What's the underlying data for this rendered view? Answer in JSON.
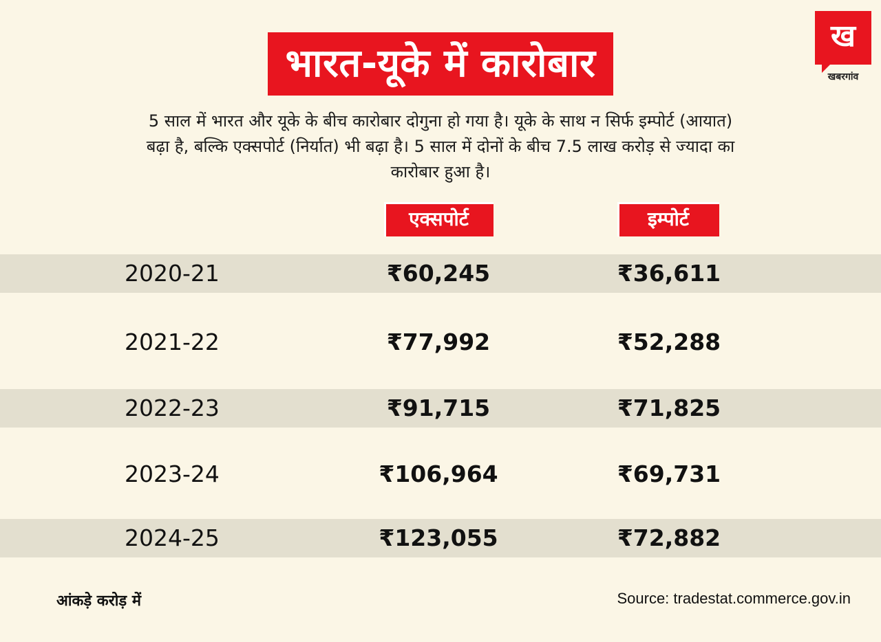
{
  "title": "भारत-यूके में कारोबार",
  "logo": {
    "mark": "ख",
    "text": "खबरगांव"
  },
  "intro": "5 साल में भारत और यूके के बीच कारोबार दोगुना हो गया है। यूके के साथ न सिर्फ इम्पोर्ट (आयात) बढ़ा है, बल्कि एक्सपोर्ट (निर्यात) भी बढ़ा है। 5 साल में दोनों के बीच 7.5 लाख करोड़ से ज्यादा का कारोबार हुआ है।",
  "colors": {
    "accent": "#e8151f",
    "background": "#fbf6e6",
    "stripe": "#e3dfcf"
  },
  "chart_data": {
    "type": "table",
    "columns": [
      "एक्सपोर्ट",
      "इम्पोर्ट"
    ],
    "rows": [
      {
        "year": "2020-21",
        "export": "₹60,245",
        "import": "₹36,611"
      },
      {
        "year": "2021-22",
        "export": "₹77,992",
        "import": "₹52,288"
      },
      {
        "year": "2022-23",
        "export": "₹91,715",
        "import": "₹71,825"
      },
      {
        "year": "2023-24",
        "export": "₹106,964",
        "import": "₹69,731"
      },
      {
        "year": "2024-25",
        "export": "₹123,055",
        "import": "₹72,882"
      }
    ]
  },
  "footer": {
    "note": "आंकड़े करोड़ में",
    "source": "Source: tradestat.commerce.gov.in"
  }
}
